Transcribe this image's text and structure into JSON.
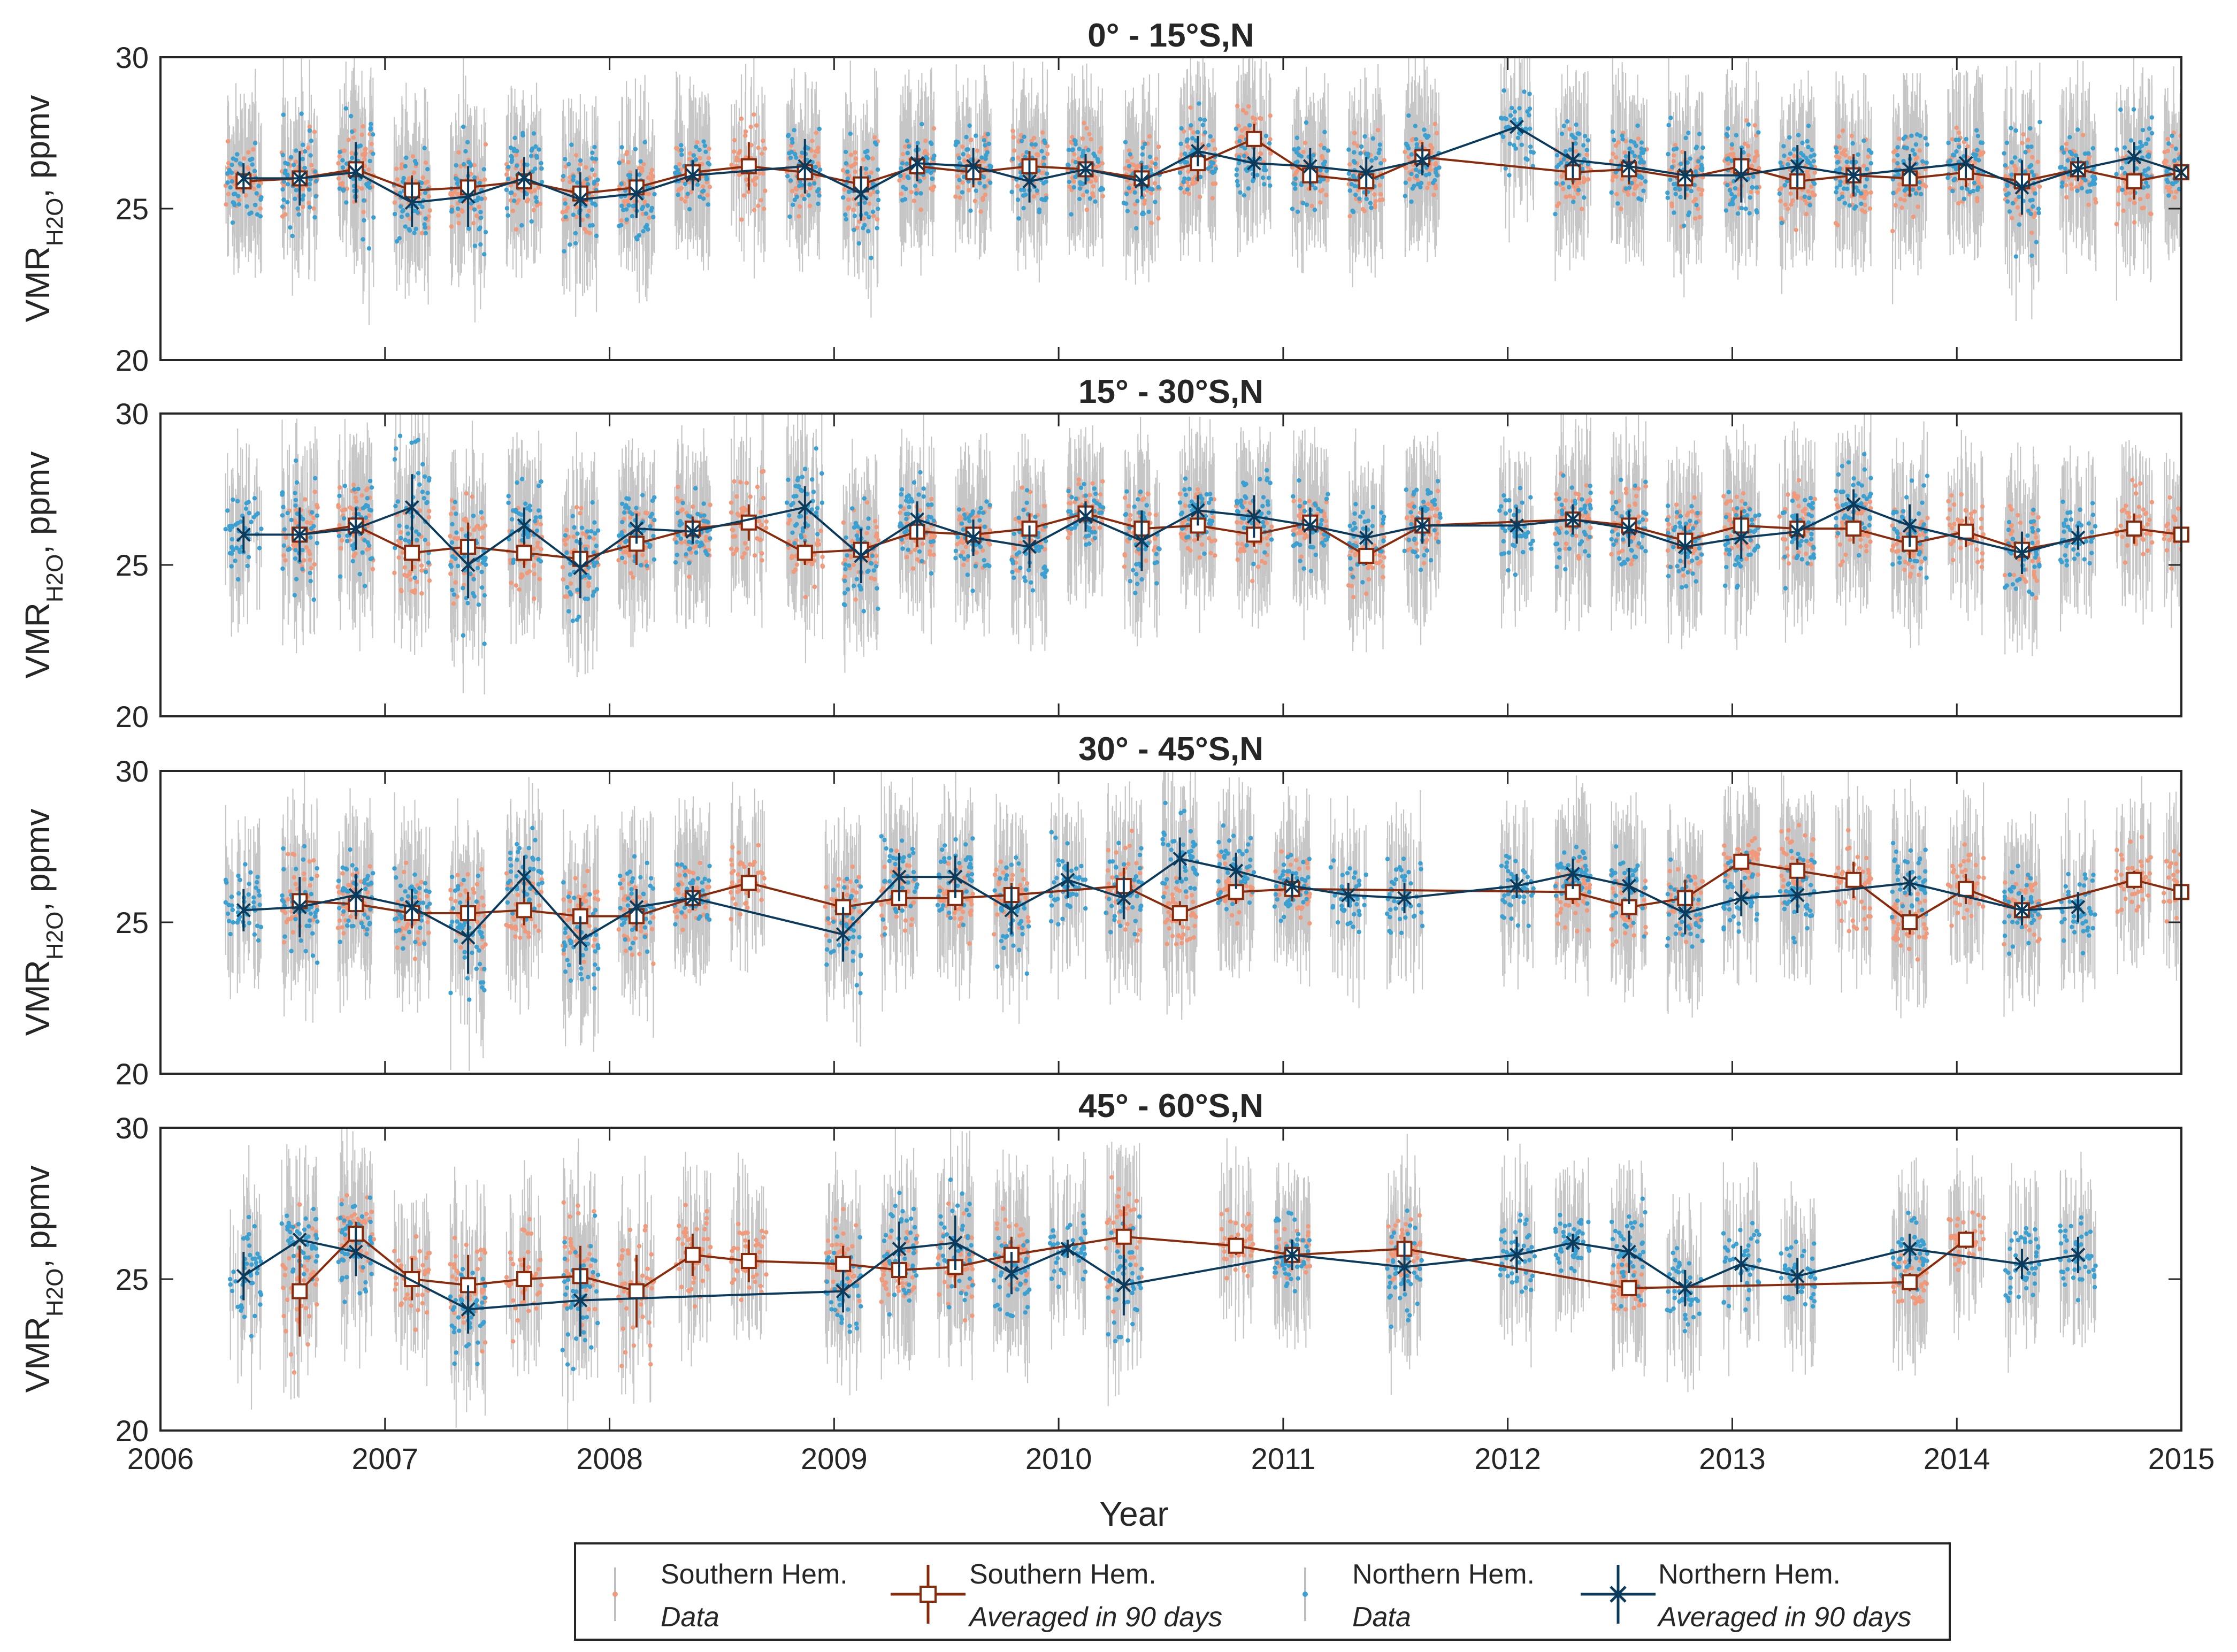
{
  "chart_data": {
    "type": "scatter",
    "xlabel": "Year",
    "ylabel_base": "VMR",
    "ylabel_sub": "H2O",
    "ylabel_unit": ", ppmv",
    "xlim": [
      2006,
      2015
    ],
    "ylim": [
      20,
      30
    ],
    "xticks": [
      2006,
      2007,
      2008,
      2009,
      2010,
      2011,
      2012,
      2013,
      2014,
      2015
    ],
    "yticks": [
      20,
      25,
      30
    ],
    "colors": {
      "south_data": "#f0997b",
      "north_data": "#3a9fd1",
      "south_avg": "#8b2a0a",
      "north_avg": "#0b3b5c",
      "errorbar": "#bdbdbd",
      "axis": "#262626"
    },
    "panels": [
      {
        "title": "0° - 15°S,N",
        "south_avg": {
          "x": [
            2006.37,
            2006.62,
            2006.87,
            2007.12,
            2007.37,
            2007.62,
            2007.87,
            2008.12,
            2008.37,
            2008.62,
            2008.87,
            2009.12,
            2009.37,
            2009.62,
            2009.87,
            2010.12,
            2010.37,
            2010.62,
            2010.87,
            2011.12,
            2011.37,
            2011.62,
            2012.29,
            2012.54,
            2012.79,
            2013.04,
            2013.29,
            2013.54,
            2013.79,
            2014.04,
            2014.29,
            2014.54,
            2014.79,
            2015.0
          ],
          "y": [
            25.9,
            26.0,
            26.3,
            25.6,
            25.7,
            25.9,
            25.5,
            25.7,
            26.2,
            26.4,
            26.2,
            25.8,
            26.4,
            26.2,
            26.4,
            26.3,
            26.0,
            26.5,
            27.3,
            26.1,
            25.9,
            26.7,
            26.2,
            26.3,
            26.0,
            26.4,
            25.9,
            26.1,
            26.0,
            26.2,
            25.9,
            26.3,
            25.9,
            26.2
          ],
          "err": [
            0.3,
            0.5,
            0.6,
            0.5,
            0.5,
            0.5,
            0.6,
            0.5,
            0.4,
            0.8,
            0.5,
            0.6,
            0.5,
            0.5,
            0.5,
            0.5,
            0.5,
            0.6,
            0.5,
            0.5,
            0.5,
            0.5,
            0.4,
            0.5,
            0.6,
            0.5,
            0.6,
            0.7,
            0.6,
            0.5,
            0.6,
            0.4,
            0.6,
            0.4
          ]
        },
        "north_avg": {
          "x": [
            2006.37,
            2006.62,
            2006.87,
            2007.12,
            2007.37,
            2007.62,
            2007.87,
            2008.12,
            2008.37,
            2008.87,
            2009.12,
            2009.37,
            2009.62,
            2009.87,
            2010.12,
            2010.37,
            2010.62,
            2010.87,
            2011.12,
            2011.37,
            2011.62,
            2012.04,
            2012.29,
            2012.54,
            2012.79,
            2013.04,
            2013.29,
            2013.54,
            2013.79,
            2014.04,
            2014.29,
            2014.54,
            2014.79,
            2015.0
          ],
          "y": [
            26.0,
            26.0,
            26.2,
            25.2,
            25.4,
            26.0,
            25.3,
            25.5,
            26.1,
            26.4,
            25.5,
            26.5,
            26.4,
            25.9,
            26.3,
            25.9,
            26.9,
            26.5,
            26.4,
            26.2,
            26.6,
            27.7,
            26.6,
            26.4,
            26.1,
            26.1,
            26.4,
            26.1,
            26.3,
            26.5,
            25.7,
            26.3,
            26.7,
            26.2
          ],
          "err": [
            0.5,
            0.9,
            1.0,
            0.8,
            1.0,
            0.7,
            0.9,
            0.8,
            0.5,
            0.9,
            0.9,
            0.6,
            0.6,
            0.7,
            0.5,
            0.5,
            0.5,
            0.5,
            0.6,
            0.5,
            0.5,
            0.0,
            0.6,
            0.5,
            0.8,
            0.9,
            0.7,
            0.6,
            0.5,
            0.5,
            0.9,
            0.4,
            0.5,
            0.3
          ]
        }
      },
      {
        "title": "15° - 30°S,N",
        "south_avg": {
          "x": [
            2006.62,
            2006.87,
            2007.12,
            2007.37,
            2007.62,
            2007.87,
            2008.12,
            2008.37,
            2008.62,
            2008.87,
            2009.12,
            2009.37,
            2009.62,
            2009.87,
            2010.12,
            2010.37,
            2010.62,
            2010.87,
            2011.12,
            2011.37,
            2011.62,
            2012.29,
            2012.54,
            2012.79,
            2013.04,
            2013.29,
            2013.54,
            2013.79,
            2014.04,
            2014.29,
            2014.79,
            2015.0
          ],
          "y": [
            26.0,
            26.3,
            25.4,
            25.6,
            25.4,
            25.2,
            25.7,
            26.2,
            26.4,
            25.4,
            25.5,
            26.1,
            26.0,
            26.2,
            26.7,
            26.2,
            26.3,
            26.0,
            26.4,
            25.3,
            26.3,
            26.5,
            26.3,
            25.8,
            26.3,
            26.2,
            26.2,
            25.7,
            26.1,
            25.5,
            26.2,
            26.0
          ],
          "err": [
            0.6,
            0.6,
            0.6,
            0.8,
            0.5,
            0.6,
            0.7,
            0.4,
            0.6,
            0.4,
            0.5,
            0.5,
            0.5,
            0.5,
            0.3,
            0.5,
            0.5,
            0.4,
            0.3,
            0.3,
            0.4,
            0.4,
            0.4,
            0.5,
            0.5,
            0.5,
            0.5,
            0.5,
            0.5,
            0.6,
            0.5,
            0.4
          ]
        },
        "north_avg": {
          "x": [
            2006.37,
            2006.62,
            2006.87,
            2007.12,
            2007.37,
            2007.62,
            2007.87,
            2008.12,
            2008.37,
            2008.87,
            2009.12,
            2009.37,
            2009.62,
            2009.87,
            2010.12,
            2010.37,
            2010.62,
            2010.87,
            2011.12,
            2011.37,
            2011.62,
            2012.04,
            2012.29,
            2012.54,
            2012.79,
            2013.04,
            2013.29,
            2013.54,
            2013.79,
            2014.29,
            2014.54
          ],
          "y": [
            26.0,
            26.0,
            26.2,
            26.9,
            25.0,
            26.3,
            24.9,
            26.2,
            26.1,
            26.9,
            25.3,
            26.5,
            25.9,
            25.6,
            26.6,
            25.8,
            26.8,
            26.6,
            26.3,
            25.9,
            26.3,
            26.3,
            26.5,
            26.2,
            25.6,
            25.9,
            26.1,
            27.0,
            26.3,
            25.4,
            25.9
          ],
          "err": [
            0.6,
            0.9,
            0.7,
            1.1,
            1.1,
            0.6,
            1.0,
            0.5,
            0.4,
            0.7,
            0.9,
            0.6,
            0.6,
            0.7,
            0.5,
            1.0,
            0.5,
            0.7,
            0.6,
            0.4,
            0.6,
            0.6,
            0.5,
            0.6,
            0.7,
            0.7,
            0.6,
            0.5,
            0.7,
            0.7,
            0.4
          ]
        }
      },
      {
        "title": "30° - 45°S,N",
        "south_avg": {
          "x": [
            2006.62,
            2006.87,
            2007.12,
            2007.37,
            2007.62,
            2007.87,
            2008.12,
            2008.37,
            2008.62,
            2009.04,
            2009.29,
            2009.54,
            2009.79,
            2010.29,
            2010.54,
            2010.79,
            2011.04,
            2012.29,
            2012.54,
            2012.79,
            2013.04,
            2013.29,
            2013.54,
            2013.79,
            2014.04,
            2014.29,
            2014.79,
            2015.0
          ],
          "y": [
            25.7,
            25.6,
            25.3,
            25.3,
            25.4,
            25.2,
            25.2,
            25.8,
            26.3,
            25.5,
            25.8,
            25.8,
            25.9,
            26.2,
            25.3,
            26.0,
            26.1,
            26.0,
            25.5,
            25.8,
            27.0,
            26.7,
            26.4,
            25.0,
            26.1,
            25.4,
            26.4,
            26.0
          ],
          "err": [
            0.5,
            0.5,
            0.5,
            0.7,
            0.5,
            0.6,
            0.5,
            0.4,
            0.5,
            0.5,
            0.4,
            0.4,
            0.4,
            0.6,
            0.4,
            0.4,
            0.4,
            0.4,
            0.4,
            0.6,
            0.3,
            0.4,
            0.6,
            0.4,
            0.5,
            0.4,
            0.3,
            0.4
          ]
        },
        "north_avg": {
          "x": [
            2006.37,
            2006.62,
            2006.87,
            2007.12,
            2007.37,
            2007.62,
            2007.87,
            2008.12,
            2008.37,
            2009.04,
            2009.29,
            2009.54,
            2009.79,
            2010.04,
            2010.29,
            2010.54,
            2010.79,
            2011.04,
            2011.29,
            2011.54,
            2012.04,
            2012.29,
            2012.54,
            2012.79,
            2013.04,
            2013.29,
            2013.79,
            2014.29,
            2014.54
          ],
          "y": [
            25.4,
            25.5,
            25.9,
            25.5,
            24.5,
            26.5,
            24.4,
            25.5,
            25.8,
            24.6,
            26.5,
            26.5,
            25.4,
            26.4,
            25.8,
            27.1,
            26.7,
            26.2,
            25.9,
            25.8,
            26.2,
            26.6,
            26.2,
            25.3,
            25.8,
            25.9,
            26.3,
            25.4,
            25.5
          ],
          "err": [
            0.7,
            1.0,
            0.7,
            0.6,
            1.2,
            0.7,
            0.8,
            0.6,
            0.4,
            0.9,
            0.8,
            0.7,
            0.8,
            0.6,
            0.7,
            0.7,
            0.6,
            0.4,
            0.4,
            0.5,
            0.4,
            0.5,
            0.6,
            0.7,
            0.6,
            0.6,
            0.4,
            0.5,
            0.5
          ]
        }
      },
      {
        "title": "45° - 60°S,N",
        "south_avg": {
          "x": [
            2006.62,
            2006.87,
            2007.12,
            2007.37,
            2007.62,
            2007.87,
            2008.12,
            2008.37,
            2008.62,
            2009.04,
            2009.29,
            2009.54,
            2009.79,
            2010.29,
            2010.79,
            2011.04,
            2011.54,
            2012.54,
            2013.79,
            2014.04
          ],
          "y": [
            24.6,
            26.5,
            25.0,
            24.8,
            25.0,
            25.1,
            24.6,
            25.8,
            25.6,
            25.5,
            25.3,
            25.4,
            25.8,
            26.4,
            26.1,
            25.8,
            26.0,
            24.7,
            24.9,
            26.3
          ],
          "err": [
            1.5,
            0.4,
            0.7,
            1.0,
            0.7,
            1.0,
            1.2,
            0.7,
            0.7,
            0.6,
            0.5,
            0.7,
            0.6,
            1.0,
            0.3,
            0.3,
            0.4,
            0.2,
            0.3,
            0.3
          ]
        },
        "north_avg": {
          "x": [
            2006.37,
            2006.62,
            2006.87,
            2007.37,
            2007.87,
            2009.04,
            2009.29,
            2009.54,
            2009.79,
            2010.04,
            2010.29,
            2011.04,
            2011.54,
            2012.04,
            2012.29,
            2012.54,
            2012.79,
            2013.04,
            2013.29,
            2013.79,
            2014.29,
            2014.54
          ],
          "y": [
            25.1,
            26.3,
            25.9,
            24.0,
            24.3,
            24.6,
            26.0,
            26.2,
            25.2,
            26.0,
            24.8,
            25.8,
            25.4,
            25.8,
            26.2,
            25.9,
            24.7,
            25.5,
            25.1,
            26.0,
            25.5,
            25.8
          ],
          "err": [
            0.8,
            0.0,
            0.8,
            0.8,
            1.2,
            0.7,
            0.9,
            0.9,
            0.7,
            0.3,
            1.0,
            0.5,
            0.8,
            0.6,
            0.3,
            0.7,
            0.6,
            0.6,
            0.6,
            0.5,
            0.5,
            0.6
          ]
        }
      }
    ],
    "legend": [
      {
        "line1": "Southern Hem.",
        "line2": "Data",
        "style": "south-data"
      },
      {
        "line1": "Southern Hem.",
        "line2": "Averaged in 90 days",
        "style": "south-avg"
      },
      {
        "line1": "Northern Hem.",
        "line2": "Data",
        "style": "north-data"
      },
      {
        "line1": "Northern Hem.",
        "line2": "Averaged in 90 days",
        "style": "north-avg"
      }
    ]
  }
}
